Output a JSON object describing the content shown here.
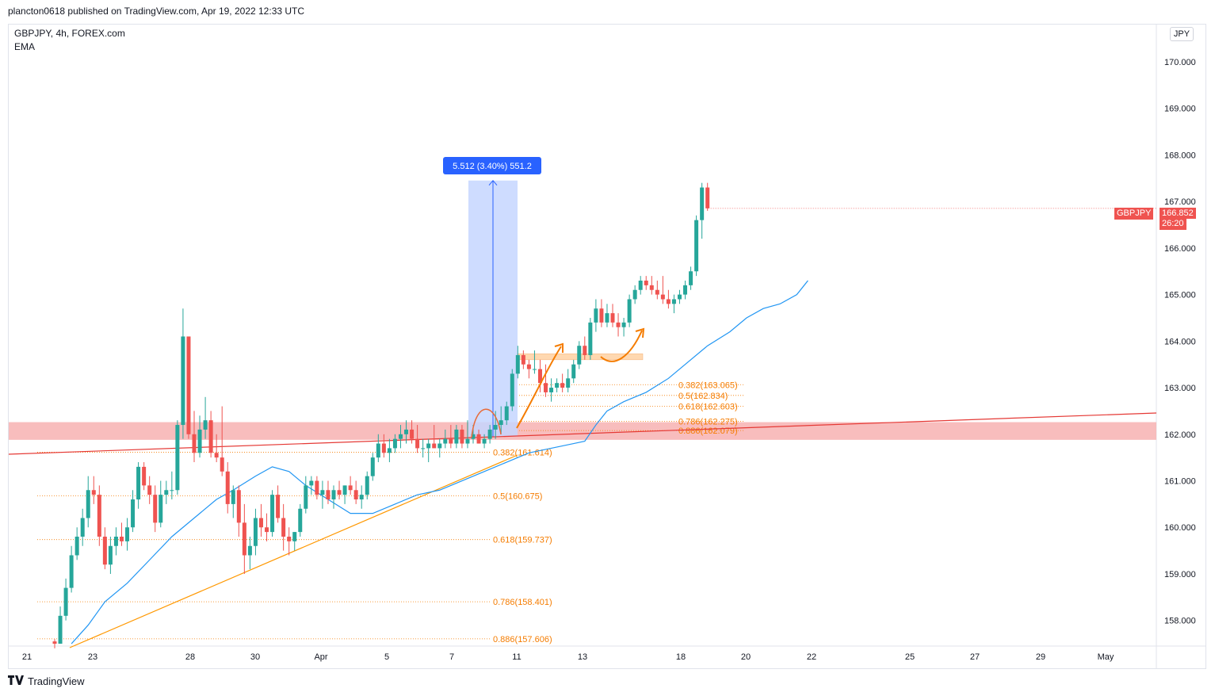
{
  "header": {
    "published": "plancton0618 published on TradingView.com, Apr 19, 2022 12:33 UTC"
  },
  "legend": {
    "symbol": "GBPJPY, 4h, FOREX.com",
    "indicator": "EMA"
  },
  "currency": "JPY",
  "footer": {
    "brand": "TradingView",
    "logo": "tradingview-logo-icon"
  },
  "colors": {
    "up": "#26a69a",
    "down": "#ef5350",
    "ema": "#2196f3",
    "fib": "#f57c00",
    "zone": "#f7b6b6",
    "measure_fill": "#c6d6ff",
    "measure_border": "#2962ff"
  },
  "chart_data": {
    "type": "candlestick",
    "title": "",
    "y_axis": {
      "range": [
        157.45,
        170.8
      ],
      "ticks": [
        "170.000",
        "169.000",
        "168.000",
        "167.000",
        "166.000",
        "165.000",
        "164.000",
        "163.000",
        "162.000",
        "161.000",
        "160.000",
        "159.000",
        "158.000"
      ]
    },
    "x_axis": {
      "labels": [
        "21",
        "23",
        "28",
        "30",
        "Apr",
        "5",
        "7",
        "11",
        "13",
        "18",
        "20",
        "22",
        "25",
        "27",
        "29",
        "May"
      ]
    },
    "candles": [
      [
        157.55,
        157.6,
        157.4,
        157.5
      ],
      [
        157.5,
        158.3,
        157.5,
        158.1
      ],
      [
        158.1,
        158.9,
        158.0,
        158.7
      ],
      [
        158.7,
        159.6,
        158.6,
        159.4
      ],
      [
        159.4,
        160.0,
        159.3,
        159.8
      ],
      [
        159.8,
        160.4,
        159.6,
        160.2
      ],
      [
        160.2,
        161.1,
        160.0,
        160.8
      ],
      [
        160.8,
        161.1,
        160.5,
        160.7
      ],
      [
        160.7,
        160.9,
        159.6,
        159.8
      ],
      [
        159.8,
        160.0,
        159.1,
        159.2
      ],
      [
        159.2,
        159.8,
        159.0,
        159.6
      ],
      [
        159.6,
        160.0,
        159.4,
        159.8
      ],
      [
        159.8,
        160.1,
        159.6,
        159.7
      ],
      [
        159.7,
        160.2,
        159.5,
        160.0
      ],
      [
        160.0,
        160.8,
        159.9,
        160.6
      ],
      [
        160.6,
        161.4,
        160.4,
        161.3
      ],
      [
        161.3,
        161.4,
        160.8,
        160.9
      ],
      [
        160.9,
        161.1,
        160.5,
        160.7
      ],
      [
        160.7,
        160.9,
        159.9,
        160.1
      ],
      [
        160.1,
        161.0,
        160.0,
        160.7
      ],
      [
        160.7,
        161.0,
        160.5,
        160.8
      ],
      [
        160.8,
        161.2,
        160.6,
        160.8
      ],
      [
        160.8,
        162.3,
        160.7,
        162.2
      ],
      [
        162.2,
        164.7,
        161.9,
        164.1
      ],
      [
        164.1,
        164.1,
        161.9,
        162.0
      ],
      [
        162.0,
        162.5,
        161.4,
        161.6
      ],
      [
        161.6,
        162.4,
        161.5,
        162.1
      ],
      [
        162.1,
        162.8,
        161.9,
        162.3
      ],
      [
        162.3,
        162.5,
        161.5,
        161.6
      ],
      [
        161.6,
        162.0,
        161.4,
        161.5
      ],
      [
        161.5,
        162.6,
        161.1,
        161.2
      ],
      [
        161.2,
        161.4,
        160.3,
        160.5
      ],
      [
        160.5,
        160.9,
        160.2,
        160.8
      ],
      [
        160.8,
        160.9,
        159.8,
        160.1
      ],
      [
        160.1,
        160.5,
        159.0,
        159.4
      ],
      [
        159.4,
        159.8,
        159.1,
        159.6
      ],
      [
        159.6,
        160.4,
        159.4,
        160.2
      ],
      [
        160.2,
        160.5,
        159.8,
        160.0
      ],
      [
        160.0,
        160.3,
        159.7,
        159.9
      ],
      [
        159.9,
        160.8,
        159.8,
        160.7
      ],
      [
        160.7,
        160.9,
        160.1,
        160.2
      ],
      [
        160.2,
        160.5,
        159.5,
        159.8
      ],
      [
        159.8,
        160.0,
        159.4,
        159.7
      ],
      [
        159.7,
        159.9,
        159.5,
        159.9
      ],
      [
        159.9,
        160.5,
        159.8,
        160.4
      ],
      [
        160.4,
        161.1,
        160.3,
        160.9
      ],
      [
        160.9,
        161.1,
        160.7,
        161.0
      ],
      [
        161.0,
        161.1,
        160.6,
        160.7
      ],
      [
        160.7,
        161.0,
        160.4,
        160.8
      ],
      [
        160.8,
        161.0,
        160.5,
        160.6
      ],
      [
        160.6,
        160.9,
        160.4,
        160.8
      ],
      [
        160.8,
        161.0,
        160.6,
        160.7
      ],
      [
        160.7,
        160.9,
        160.5,
        160.9
      ],
      [
        160.9,
        161.1,
        160.7,
        160.8
      ],
      [
        160.8,
        161.0,
        160.5,
        160.6
      ],
      [
        160.6,
        160.9,
        160.4,
        160.7
      ],
      [
        160.7,
        161.2,
        160.6,
        161.1
      ],
      [
        161.1,
        161.6,
        161.0,
        161.5
      ],
      [
        161.5,
        162.0,
        161.4,
        161.8
      ],
      [
        161.8,
        162.0,
        161.5,
        161.6
      ],
      [
        161.6,
        161.9,
        161.4,
        161.7
      ],
      [
        161.7,
        162.0,
        161.6,
        161.9
      ],
      [
        161.9,
        162.2,
        161.7,
        162.0
      ],
      [
        162.0,
        162.3,
        161.8,
        162.1
      ],
      [
        162.1,
        162.3,
        161.8,
        161.9
      ],
      [
        161.9,
        162.2,
        161.6,
        161.7
      ],
      [
        161.7,
        161.9,
        161.5,
        161.7
      ],
      [
        161.7,
        161.9,
        161.4,
        161.8
      ],
      [
        161.8,
        162.2,
        161.7,
        161.7
      ],
      [
        161.7,
        161.9,
        161.5,
        161.8
      ],
      [
        161.8,
        162.1,
        161.7,
        161.9
      ],
      [
        161.9,
        162.2,
        161.7,
        161.8
      ],
      [
        161.8,
        162.2,
        161.7,
        162.1
      ],
      [
        162.1,
        162.2,
        161.7,
        161.8
      ],
      [
        161.8,
        162.3,
        161.7,
        161.9
      ],
      [
        161.9,
        162.2,
        161.8,
        162.0
      ],
      [
        162.0,
        162.1,
        161.8,
        161.8
      ],
      [
        161.8,
        162.0,
        161.7,
        161.9
      ],
      [
        161.9,
        162.2,
        161.8,
        162.1
      ],
      [
        162.1,
        162.5,
        161.9,
        162.2
      ],
      [
        162.2,
        162.6,
        162.0,
        162.3
      ],
      [
        162.3,
        162.7,
        162.2,
        162.6
      ],
      [
        162.6,
        163.4,
        162.5,
        163.3
      ],
      [
        163.3,
        163.9,
        163.2,
        163.7
      ],
      [
        163.7,
        163.8,
        163.4,
        163.5
      ],
      [
        163.5,
        163.6,
        163.2,
        163.4
      ],
      [
        163.4,
        163.8,
        163.3,
        163.4
      ],
      [
        163.4,
        163.6,
        162.9,
        163.1
      ],
      [
        163.1,
        163.5,
        162.8,
        162.9
      ],
      [
        162.9,
        163.2,
        162.7,
        163.0
      ],
      [
        163.0,
        163.2,
        162.9,
        163.1
      ],
      [
        163.1,
        163.3,
        162.9,
        163.0
      ],
      [
        163.0,
        163.4,
        162.9,
        163.2
      ],
      [
        163.2,
        163.6,
        163.1,
        163.5
      ],
      [
        163.5,
        164.0,
        163.4,
        163.9
      ],
      [
        163.9,
        164.1,
        163.6,
        163.7
      ],
      [
        163.7,
        164.5,
        163.6,
        164.4
      ],
      [
        164.4,
        164.9,
        164.2,
        164.7
      ],
      [
        164.7,
        164.9,
        164.3,
        164.4
      ],
      [
        164.4,
        164.8,
        164.3,
        164.6
      ],
      [
        164.6,
        164.8,
        164.3,
        164.4
      ],
      [
        164.4,
        164.6,
        164.1,
        164.3
      ],
      [
        164.3,
        164.5,
        164.1,
        164.4
      ],
      [
        164.4,
        165.0,
        164.3,
        164.9
      ],
      [
        164.9,
        165.2,
        164.8,
        165.1
      ],
      [
        165.1,
        165.4,
        165.0,
        165.3
      ],
      [
        165.3,
        165.4,
        165.1,
        165.2
      ],
      [
        165.2,
        165.4,
        165.0,
        165.1
      ],
      [
        165.1,
        165.3,
        164.9,
        165.0
      ],
      [
        165.0,
        165.4,
        164.8,
        164.9
      ],
      [
        164.9,
        165.1,
        164.7,
        164.8
      ],
      [
        164.8,
        165.0,
        164.6,
        164.9
      ],
      [
        164.9,
        165.1,
        164.8,
        165.0
      ],
      [
        165.0,
        165.3,
        164.9,
        165.2
      ],
      [
        165.2,
        165.6,
        165.1,
        165.5
      ],
      [
        165.5,
        166.7,
        165.4,
        166.6
      ],
      [
        166.6,
        167.4,
        166.2,
        167.3
      ],
      [
        167.3,
        167.4,
        166.8,
        166.852
      ]
    ],
    "ema": [
      [
        3,
        157.5
      ],
      [
        6,
        157.9
      ],
      [
        9,
        158.4
      ],
      [
        13,
        158.8
      ],
      [
        17,
        159.3
      ],
      [
        21,
        159.8
      ],
      [
        25,
        160.2
      ],
      [
        29,
        160.6
      ],
      [
        32,
        160.8
      ],
      [
        36,
        161.1
      ],
      [
        39,
        161.3
      ],
      [
        42,
        161.2
      ],
      [
        45,
        160.9
      ],
      [
        49,
        160.6
      ],
      [
        53,
        160.3
      ],
      [
        57,
        160.3
      ],
      [
        61,
        160.5
      ],
      [
        65,
        160.7
      ],
      [
        69,
        160.8
      ],
      [
        73,
        161.0
      ],
      [
        77,
        161.2
      ],
      [
        81,
        161.4
      ],
      [
        85,
        161.6
      ],
      [
        89,
        161.7
      ],
      [
        93,
        161.8
      ],
      [
        95,
        161.85
      ],
      [
        97,
        162.2
      ],
      [
        99,
        162.5
      ],
      [
        102,
        162.7
      ],
      [
        106,
        162.9
      ],
      [
        110,
        163.2
      ],
      [
        113,
        163.5
      ],
      [
        117,
        163.9
      ],
      [
        121,
        164.2
      ],
      [
        124,
        164.5
      ],
      [
        127,
        164.7
      ],
      [
        130,
        164.8
      ],
      [
        133,
        165.0
      ],
      [
        135,
        165.3
      ]
    ],
    "annotations": {
      "measure": {
        "label": "5.512 (3.40%) 551.2",
        "from": 161.95,
        "to": 167.45
      },
      "fib_upper": [
        {
          "label": "0.382(163.065)",
          "value": 163.065
        },
        {
          "label": "0.5(162.834)",
          "value": 162.834
        },
        {
          "label": "0.618(162.603)",
          "value": 162.603
        },
        {
          "label": "0.786(162.275)",
          "value": 162.275
        },
        {
          "label": "0.886(162.079)",
          "value": 162.079
        }
      ],
      "fib_lower": [
        {
          "label": "0.382(161.614)",
          "value": 161.614
        },
        {
          "label": "0.5(160.675)",
          "value": 160.675
        },
        {
          "label": "0.618(159.737)",
          "value": 159.737
        },
        {
          "label": "0.786(158.401)",
          "value": 158.401
        },
        {
          "label": "0.886(157.606)",
          "value": 157.606
        }
      ],
      "support_zone": [
        161.88,
        162.26
      ],
      "resistance_zone": [
        163.6,
        163.73
      ]
    },
    "last_price": {
      "symbol": "GBPJPY",
      "price": "166.852",
      "countdown": "26:20"
    }
  }
}
